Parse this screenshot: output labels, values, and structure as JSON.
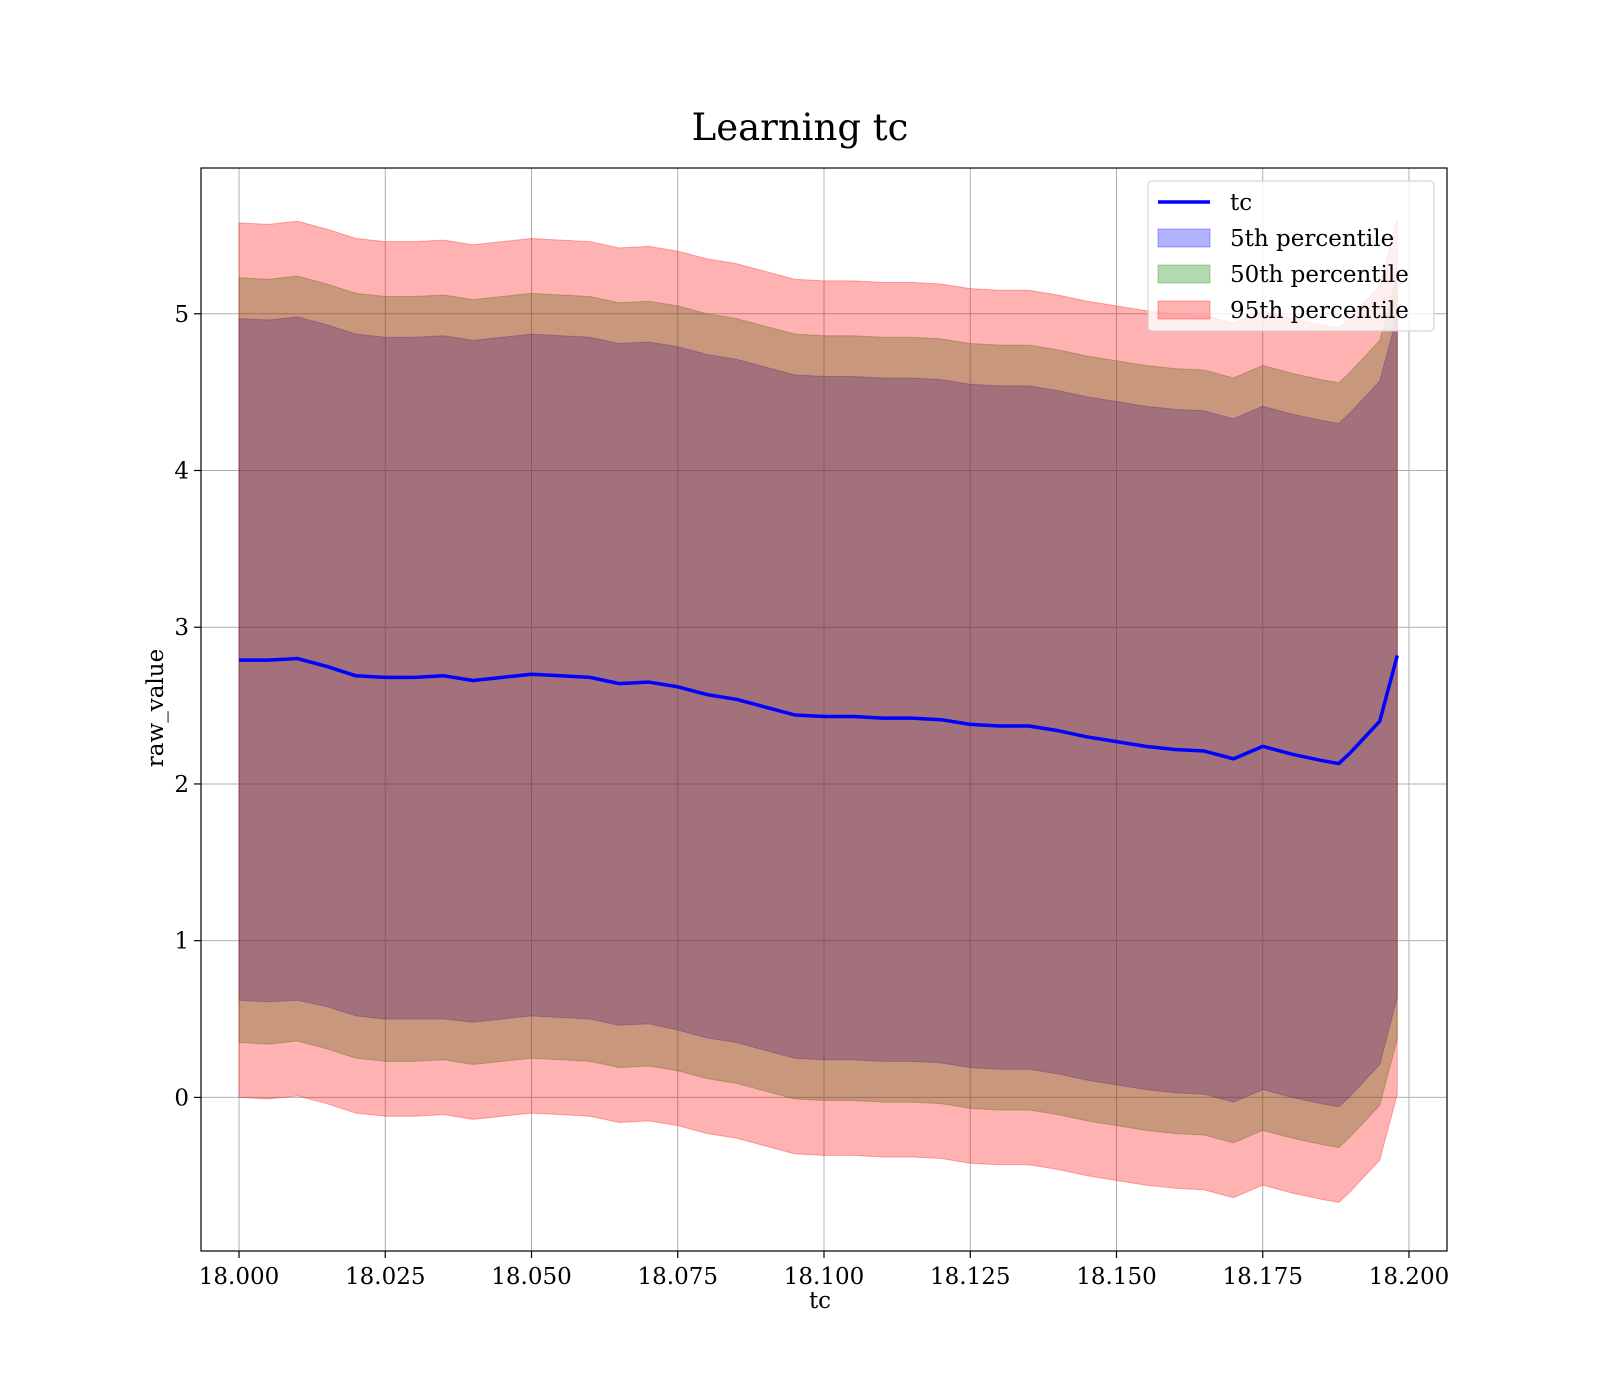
{
  "chart_data": {
    "type": "area",
    "title": "Learning tc",
    "xlabel": "tc",
    "ylabel": "raw_value",
    "xlim": [
      17.9935,
      18.2065
    ],
    "ylim": [
      -0.98,
      5.93
    ],
    "xticks": [
      18.0,
      18.025,
      18.05,
      18.075,
      18.1,
      18.125,
      18.15,
      18.175,
      18.2
    ],
    "xtick_labels": [
      "18.000",
      "18.025",
      "18.050",
      "18.075",
      "18.100",
      "18.125",
      "18.150",
      "18.175",
      "18.200"
    ],
    "yticks": [
      0,
      1,
      2,
      3,
      4,
      5
    ],
    "ytick_labels": [
      "0",
      "1",
      "2",
      "3",
      "4",
      "5"
    ],
    "grid": true,
    "legend_position": "top-right",
    "x": [
      18.0,
      18.005,
      18.01,
      18.015,
      18.02,
      18.025,
      18.03,
      18.035,
      18.04,
      18.045,
      18.05,
      18.055,
      18.06,
      18.065,
      18.07,
      18.075,
      18.08,
      18.085,
      18.09,
      18.095,
      18.1,
      18.105,
      18.11,
      18.115,
      18.12,
      18.125,
      18.13,
      18.135,
      18.14,
      18.145,
      18.15,
      18.155,
      18.16,
      18.165,
      18.17,
      18.175,
      18.18,
      18.185,
      18.188,
      18.19,
      18.195,
      18.198
    ],
    "series": [
      {
        "name": "tc",
        "kind": "line",
        "color": "#0000ff",
        "values": [
          2.79,
          2.79,
          2.8,
          2.75,
          2.69,
          2.68,
          2.68,
          2.69,
          2.66,
          2.68,
          2.7,
          2.69,
          2.68,
          2.64,
          2.65,
          2.62,
          2.57,
          2.54,
          2.49,
          2.44,
          2.43,
          2.43,
          2.42,
          2.42,
          2.41,
          2.38,
          2.37,
          2.37,
          2.34,
          2.3,
          2.27,
          2.24,
          2.22,
          2.21,
          2.16,
          2.24,
          2.19,
          2.15,
          2.13,
          2.2,
          2.4,
          2.82
        ]
      },
      {
        "name": "5th percentile",
        "kind": "band",
        "color": "#0000ff",
        "lower": [
          0.62,
          0.61,
          0.62,
          0.58,
          0.52,
          0.5,
          0.5,
          0.5,
          0.48,
          0.5,
          0.52,
          0.51,
          0.5,
          0.46,
          0.47,
          0.43,
          0.38,
          0.35,
          0.3,
          0.25,
          0.24,
          0.24,
          0.23,
          0.23,
          0.22,
          0.19,
          0.18,
          0.18,
          0.15,
          0.11,
          0.08,
          0.05,
          0.03,
          0.02,
          -0.03,
          0.05,
          0.0,
          -0.04,
          -0.06,
          0.01,
          0.21,
          0.64
        ],
        "upper": [
          4.97,
          4.96,
          4.98,
          4.93,
          4.87,
          4.85,
          4.85,
          4.86,
          4.83,
          4.85,
          4.87,
          4.86,
          4.85,
          4.81,
          4.82,
          4.79,
          4.74,
          4.71,
          4.66,
          4.61,
          4.6,
          4.6,
          4.59,
          4.59,
          4.58,
          4.55,
          4.54,
          4.54,
          4.51,
          4.47,
          4.44,
          4.41,
          4.39,
          4.38,
          4.33,
          4.41,
          4.36,
          4.32,
          4.3,
          4.37,
          4.57,
          4.99
        ]
      },
      {
        "name": "50th percentile",
        "kind": "band",
        "color": "#008000",
        "lower": [
          0.35,
          0.34,
          0.36,
          0.31,
          0.25,
          0.23,
          0.23,
          0.24,
          0.21,
          0.23,
          0.25,
          0.24,
          0.23,
          0.19,
          0.2,
          0.17,
          0.12,
          0.09,
          0.04,
          -0.01,
          -0.02,
          -0.02,
          -0.03,
          -0.03,
          -0.04,
          -0.07,
          -0.08,
          -0.08,
          -0.11,
          -0.15,
          -0.18,
          -0.21,
          -0.23,
          -0.24,
          -0.29,
          -0.21,
          -0.26,
          -0.3,
          -0.32,
          -0.25,
          -0.05,
          0.37
        ],
        "upper": [
          5.23,
          5.22,
          5.24,
          5.19,
          5.13,
          5.11,
          5.11,
          5.12,
          5.09,
          5.11,
          5.13,
          5.12,
          5.11,
          5.07,
          5.08,
          5.05,
          5.0,
          4.97,
          4.92,
          4.87,
          4.86,
          4.86,
          4.85,
          4.85,
          4.84,
          4.81,
          4.8,
          4.8,
          4.77,
          4.73,
          4.7,
          4.67,
          4.65,
          4.64,
          4.59,
          4.67,
          4.62,
          4.58,
          4.56,
          4.63,
          4.83,
          5.25
        ]
      },
      {
        "name": "95th percentile",
        "kind": "band",
        "color": "#ff0000",
        "lower": [
          0.0,
          -0.01,
          0.01,
          -0.04,
          -0.1,
          -0.12,
          -0.12,
          -0.11,
          -0.14,
          -0.12,
          -0.1,
          -0.11,
          -0.12,
          -0.16,
          -0.15,
          -0.18,
          -0.23,
          -0.26,
          -0.31,
          -0.36,
          -0.37,
          -0.37,
          -0.38,
          -0.38,
          -0.39,
          -0.42,
          -0.43,
          -0.43,
          -0.46,
          -0.5,
          -0.53,
          -0.56,
          -0.58,
          -0.59,
          -0.64,
          -0.56,
          -0.61,
          -0.65,
          -0.67,
          -0.6,
          -0.4,
          0.02
        ],
        "upper": [
          5.58,
          5.57,
          5.59,
          5.54,
          5.48,
          5.46,
          5.46,
          5.47,
          5.44,
          5.46,
          5.48,
          5.47,
          5.46,
          5.42,
          5.43,
          5.4,
          5.35,
          5.32,
          5.27,
          5.22,
          5.21,
          5.21,
          5.2,
          5.2,
          5.19,
          5.16,
          5.15,
          5.15,
          5.12,
          5.08,
          5.05,
          5.02,
          5.0,
          4.99,
          4.94,
          5.02,
          4.97,
          4.93,
          4.91,
          4.98,
          5.18,
          5.6
        ]
      }
    ]
  }
}
